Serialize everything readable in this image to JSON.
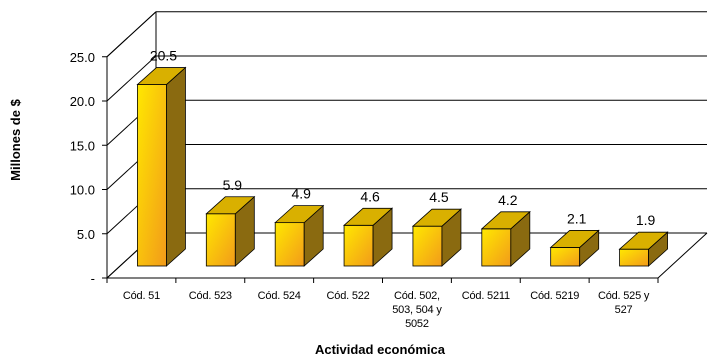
{
  "chart_data": {
    "type": "bar",
    "title": "",
    "xlabel": "Actividad económica",
    "ylabel": "Millones de $",
    "ylim": [
      0,
      25
    ],
    "y_ticks": [
      0,
      5,
      10,
      15,
      20,
      25
    ],
    "y_tick_labels": [
      "-",
      "5.0",
      "10.0",
      "15.0",
      "20.0",
      "25.0"
    ],
    "categories": [
      [
        "Cód. 51"
      ],
      [
        "Cód. 523"
      ],
      [
        "Cód. 524"
      ],
      [
        "Cód. 522"
      ],
      [
        "Cód. 502,",
        "503, 504 y",
        "5052"
      ],
      [
        "Cód. 5211"
      ],
      [
        "Cód. 5219"
      ],
      [
        "Cód. 525 y",
        "527"
      ]
    ],
    "values": [
      20.5,
      5.9,
      4.9,
      4.6,
      4.5,
      4.2,
      2.1,
      1.9
    ],
    "value_labels": [
      "20.5",
      "5.9",
      "4.9",
      "4.6",
      "4.5",
      "4.2",
      "2.1",
      "1.9"
    ],
    "style": "3d-column",
    "grid": true,
    "legend": "none",
    "colors": {
      "bar_front_top": "#FFE800",
      "bar_front_bottom": "#F29A1A",
      "bar_top": "#D9B000",
      "bar_side": "#8A6A10",
      "bar_outline": "#000000",
      "grid": "#000000"
    }
  }
}
